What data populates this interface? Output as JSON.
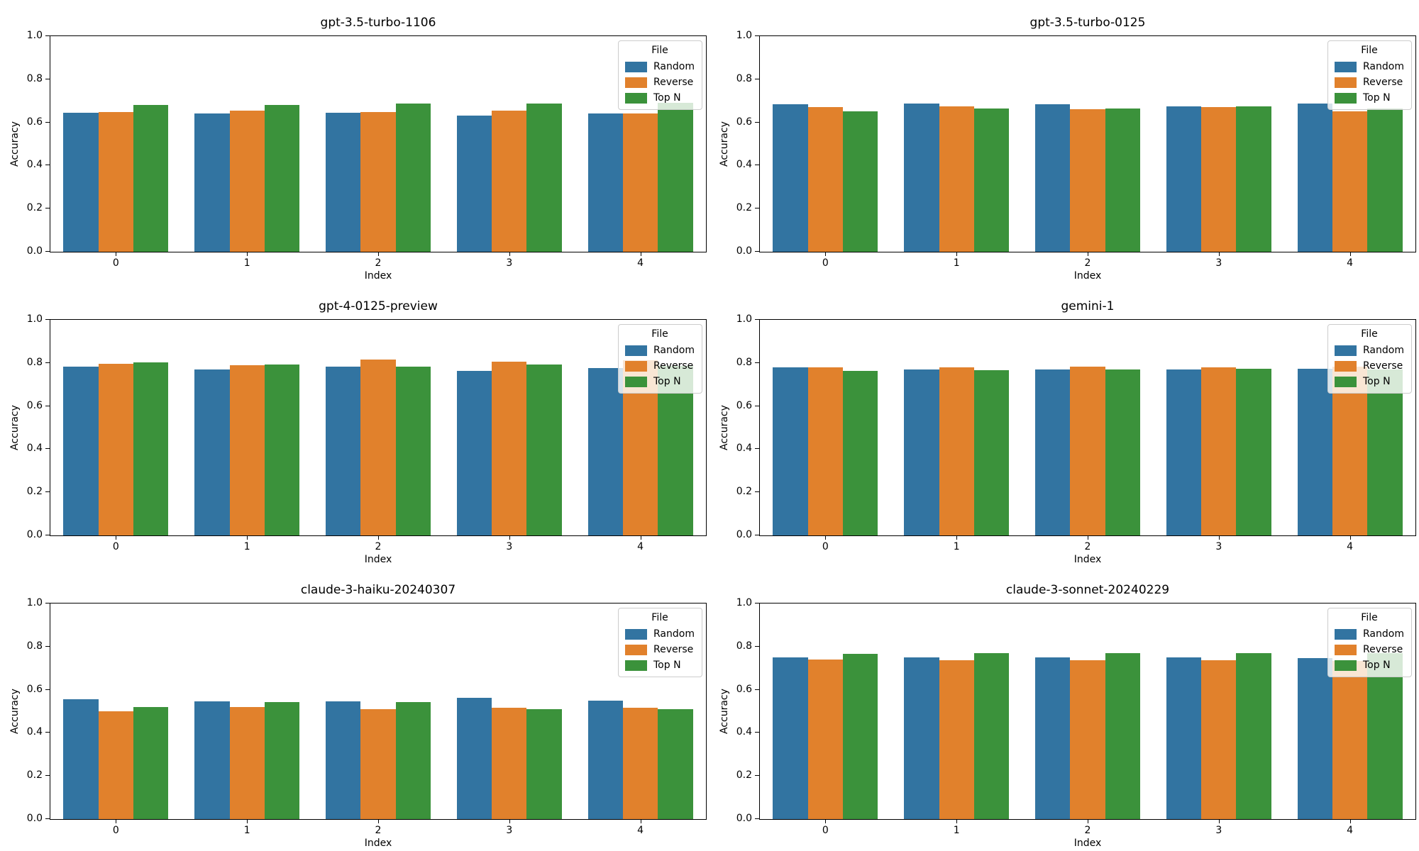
{
  "figure": {
    "background": "#ffffff",
    "rows": 3,
    "cols": 2,
    "ylabel": "Accuracy",
    "xlabel": "Index",
    "legend_title": "File",
    "series_names": [
      "Random",
      "Reverse",
      "Top N"
    ],
    "series_colors": [
      "#3274a1",
      "#e1812c",
      "#3b923b"
    ],
    "ytick_values": [
      0.0,
      0.2,
      0.4,
      0.6,
      0.8,
      1.0
    ],
    "ytick_labels": [
      "0.0",
      "0.2",
      "0.4",
      "0.6",
      "0.8",
      "1.0"
    ],
    "xtick_labels": [
      "0",
      "1",
      "2",
      "3",
      "4"
    ],
    "ylim": [
      0,
      1
    ]
  },
  "chart_data": [
    {
      "type": "bar",
      "title": "gpt-3.5-turbo-1106",
      "xlabel": "Index",
      "ylabel": "Accuracy",
      "ylim": [
        0,
        1
      ],
      "grid": false,
      "legend_title": "File",
      "legend_position": "upper right",
      "categories": [
        0,
        1,
        2,
        3,
        4
      ],
      "series": [
        {
          "name": "Random",
          "values": [
            0.645,
            0.64,
            0.645,
            0.63,
            0.64
          ]
        },
        {
          "name": "Reverse",
          "values": [
            0.648,
            0.655,
            0.648,
            0.655,
            0.642
          ]
        },
        {
          "name": "Top N",
          "values": [
            0.68,
            0.68,
            0.688,
            0.688,
            0.692
          ]
        }
      ]
    },
    {
      "type": "bar",
      "title": "gpt-3.5-turbo-0125",
      "xlabel": "Index",
      "ylabel": "Accuracy",
      "ylim": [
        0,
        1
      ],
      "grid": false,
      "legend_title": "File",
      "legend_position": "upper right",
      "categories": [
        0,
        1,
        2,
        3,
        4
      ],
      "series": [
        {
          "name": "Random",
          "values": [
            0.684,
            0.688,
            0.684,
            0.673,
            0.687
          ]
        },
        {
          "name": "Reverse",
          "values": [
            0.671,
            0.675,
            0.66,
            0.67,
            0.651
          ]
        },
        {
          "name": "Top N",
          "values": [
            0.652,
            0.665,
            0.663,
            0.673,
            0.663
          ]
        }
      ]
    },
    {
      "type": "bar",
      "title": "gpt-4-0125-preview",
      "xlabel": "Index",
      "ylabel": "Accuracy",
      "ylim": [
        0,
        1
      ],
      "grid": false,
      "legend_title": "File",
      "legend_position": "upper right",
      "categories": [
        0,
        1,
        2,
        3,
        4
      ],
      "series": [
        {
          "name": "Random",
          "values": [
            0.783,
            0.769,
            0.783,
            0.764,
            0.775
          ]
        },
        {
          "name": "Reverse",
          "values": [
            0.797,
            0.789,
            0.817,
            0.807,
            0.812
          ]
        },
        {
          "name": "Top N",
          "values": [
            0.803,
            0.792,
            0.784,
            0.792,
            0.785
          ]
        }
      ]
    },
    {
      "type": "bar",
      "title": "gemini-1",
      "xlabel": "Index",
      "ylabel": "Accuracy",
      "ylim": [
        0,
        1
      ],
      "grid": false,
      "legend_title": "File",
      "legend_position": "upper right",
      "categories": [
        0,
        1,
        2,
        3,
        4
      ],
      "series": [
        {
          "name": "Random",
          "values": [
            0.779,
            0.771,
            0.771,
            0.771,
            0.774
          ]
        },
        {
          "name": "Reverse",
          "values": [
            0.78,
            0.78,
            0.784,
            0.78,
            0.782
          ]
        },
        {
          "name": "Top N",
          "values": [
            0.763,
            0.765,
            0.771,
            0.774,
            0.771
          ]
        }
      ]
    },
    {
      "type": "bar",
      "title": "claude-3-haiku-20240307",
      "xlabel": "Index",
      "ylabel": "Accuracy",
      "ylim": [
        0,
        1
      ],
      "grid": false,
      "legend_title": "File",
      "legend_position": "upper right",
      "categories": [
        0,
        1,
        2,
        3,
        4
      ],
      "series": [
        {
          "name": "Random",
          "values": [
            0.556,
            0.547,
            0.547,
            0.561,
            0.548
          ]
        },
        {
          "name": "Reverse",
          "values": [
            0.501,
            0.521,
            0.511,
            0.515,
            0.515
          ]
        },
        {
          "name": "Top N",
          "values": [
            0.521,
            0.544,
            0.544,
            0.511,
            0.511
          ]
        }
      ]
    },
    {
      "type": "bar",
      "title": "claude-3-sonnet-20240229",
      "xlabel": "Index",
      "ylabel": "Accuracy",
      "ylim": [
        0,
        1
      ],
      "grid": false,
      "legend_title": "File",
      "legend_position": "upper right",
      "categories": [
        0,
        1,
        2,
        3,
        4
      ],
      "series": [
        {
          "name": "Random",
          "values": [
            0.751,
            0.751,
            0.751,
            0.751,
            0.748
          ]
        },
        {
          "name": "Reverse",
          "values": [
            0.739,
            0.738,
            0.738,
            0.738,
            0.734
          ]
        },
        {
          "name": "Top N",
          "values": [
            0.768,
            0.771,
            0.771,
            0.771,
            0.769
          ]
        }
      ]
    }
  ]
}
